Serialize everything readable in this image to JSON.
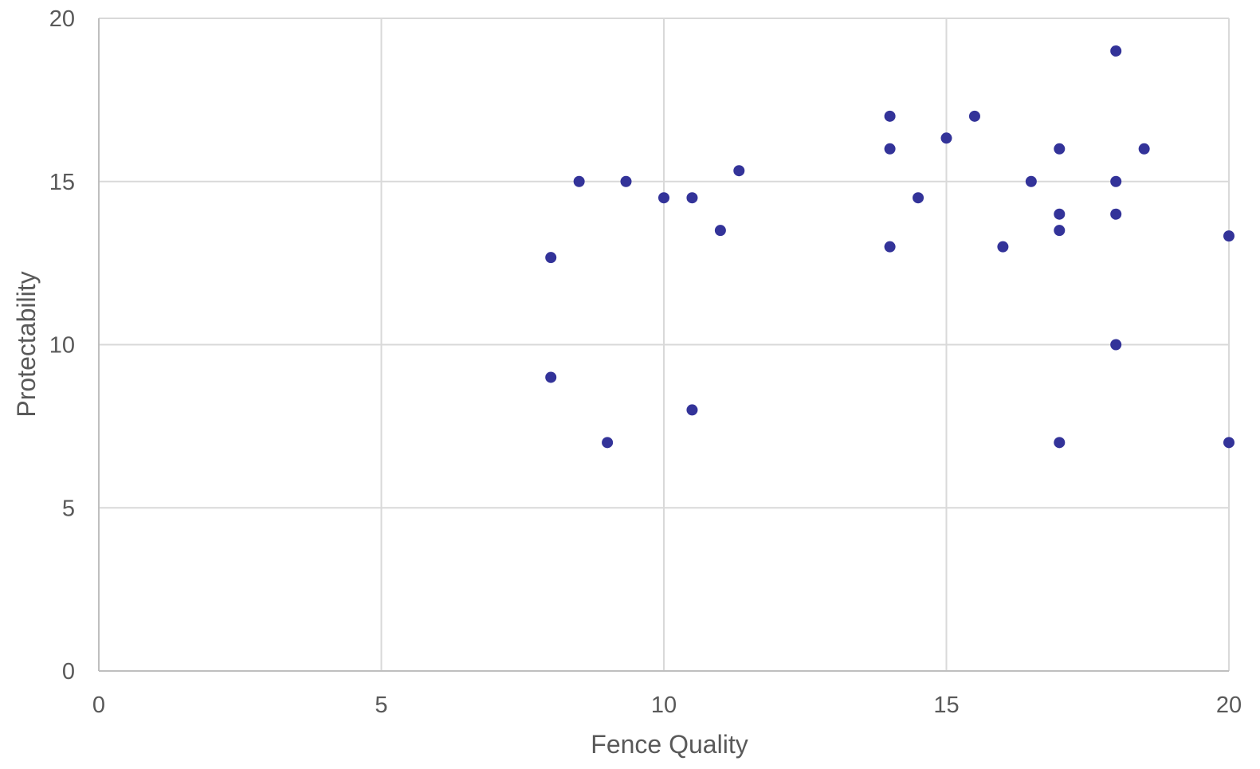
{
  "chart_data": {
    "type": "scatter",
    "title": "",
    "xlabel": "Fence Quality",
    "ylabel": "Protectability",
    "xlim": [
      0,
      20
    ],
    "ylim": [
      0,
      20
    ],
    "x_ticks": [
      0,
      5,
      10,
      15,
      20
    ],
    "y_ticks": [
      0,
      5,
      10,
      15,
      20
    ],
    "grid": true,
    "legend": "none",
    "marker_color": "#333399",
    "series": [
      {
        "points": [
          {
            "x": 8,
            "y": 12.67
          },
          {
            "x": 8,
            "y": 9
          },
          {
            "x": 8.5,
            "y": 15
          },
          {
            "x": 9,
            "y": 7
          },
          {
            "x": 9.33,
            "y": 15
          },
          {
            "x": 10,
            "y": 14.5
          },
          {
            "x": 10.5,
            "y": 14.5
          },
          {
            "x": 10.5,
            "y": 8
          },
          {
            "x": 11,
            "y": 13.5
          },
          {
            "x": 11.33,
            "y": 15.33
          },
          {
            "x": 14,
            "y": 17
          },
          {
            "x": 14,
            "y": 16
          },
          {
            "x": 14,
            "y": 13
          },
          {
            "x": 14.5,
            "y": 14.5
          },
          {
            "x": 15,
            "y": 16.33
          },
          {
            "x": 15.5,
            "y": 17
          },
          {
            "x": 16,
            "y": 13
          },
          {
            "x": 16.5,
            "y": 15
          },
          {
            "x": 17,
            "y": 16
          },
          {
            "x": 17,
            "y": 14
          },
          {
            "x": 17,
            "y": 13.5
          },
          {
            "x": 17,
            "y": 7
          },
          {
            "x": 18,
            "y": 19
          },
          {
            "x": 18,
            "y": 15
          },
          {
            "x": 18,
            "y": 14
          },
          {
            "x": 18,
            "y": 10
          },
          {
            "x": 18.5,
            "y": 16
          },
          {
            "x": 20,
            "y": 13.33
          },
          {
            "x": 20,
            "y": 7
          }
        ]
      }
    ]
  }
}
